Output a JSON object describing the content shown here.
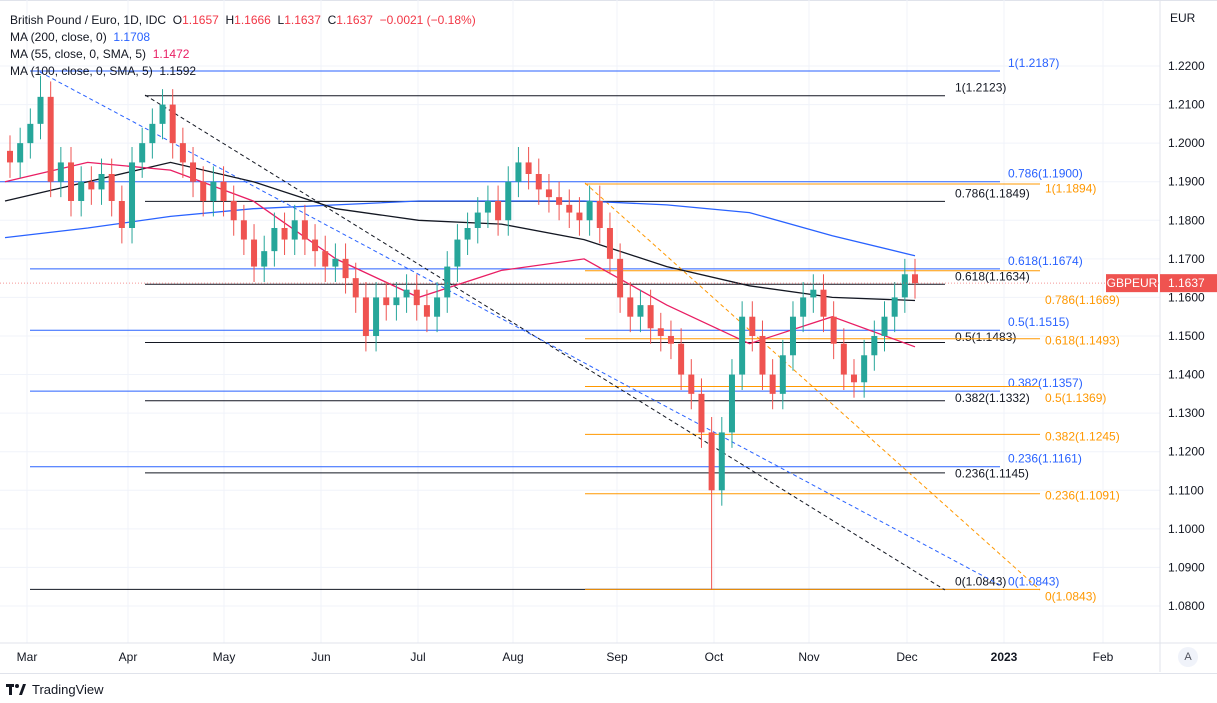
{
  "header": {
    "symbol": "British Pound / Euro, 1D, IDC",
    "open_label": "O",
    "open": "1.1657",
    "high_label": "H",
    "high": "1.1666",
    "low_label": "L",
    "low": "1.1637",
    "close_label": "C",
    "close": "1.1637",
    "change": "−0.0021 (−0.18%)"
  },
  "indicators": [
    {
      "label": "MA (200, close, 0)",
      "value": "1.1708",
      "color": "#2962ff"
    },
    {
      "label": "MA (55, close, 0, SMA, 5)",
      "value": "1.1472",
      "color": "#e91e63"
    },
    {
      "label": "MA (100, close, 0, SMA, 5)",
      "value": "1.1592",
      "color": "#131722"
    }
  ],
  "price_axis": {
    "currency": "EUR",
    "ticks": [
      "1.2200",
      "1.2100",
      "1.2000",
      "1.1900",
      "1.1800",
      "1.1700",
      "1.1600",
      "1.1500",
      "1.1400",
      "1.1300",
      "1.1200",
      "1.1100",
      "1.1000",
      "1.0900",
      "1.0800"
    ],
    "last_symbol": "GBPEUR",
    "last_price": "1.1637"
  },
  "time_axis": {
    "ticks": [
      "Mar",
      "Apr",
      "May",
      "Jun",
      "Jul",
      "Aug",
      "Sep",
      "Oct",
      "Nov",
      "Dec",
      "2023",
      "Feb"
    ],
    "auto_button": "A"
  },
  "branding": "TradingView",
  "chart_data": {
    "type": "candlestick",
    "title": "British Pound / Euro, 1D",
    "ylim": [
      1.075,
      1.226
    ],
    "candles_close": [
      1.195,
      1.2,
      1.205,
      1.212,
      1.19,
      1.195,
      1.185,
      1.19,
      1.188,
      1.192,
      1.185,
      1.178,
      1.195,
      1.2,
      1.205,
      1.21,
      1.2,
      1.195,
      1.19,
      1.185,
      1.19,
      1.185,
      1.18,
      1.175,
      1.168,
      1.172,
      1.178,
      1.175,
      1.18,
      1.175,
      1.172,
      1.168,
      1.17,
      1.165,
      1.16,
      1.15,
      1.16,
      1.158,
      1.16,
      1.162,
      1.158,
      1.155,
      1.16,
      1.168,
      1.175,
      1.178,
      1.182,
      1.185,
      1.18,
      1.19,
      1.195,
      1.192,
      1.188,
      1.186,
      1.184,
      1.182,
      1.18,
      1.185,
      1.178,
      1.17,
      1.16,
      1.155,
      1.158,
      1.152,
      1.15,
      1.148,
      1.14,
      1.135,
      1.125,
      1.11,
      1.125,
      1.14,
      1.155,
      1.15,
      1.14,
      1.135,
      1.145,
      1.155,
      1.16,
      1.162,
      1.155,
      1.148,
      1.14,
      1.138,
      1.145,
      1.15,
      1.155,
      1.16,
      1.166,
      1.1637
    ],
    "spike_high": {
      "index": 3,
      "value": 1.2175
    },
    "spike_low": {
      "index": 69,
      "value": 1.0843
    },
    "ma200": [
      1.1755,
      1.178,
      1.181,
      1.183,
      1.184,
      1.185,
      1.185,
      1.185,
      1.184,
      1.182,
      1.176,
      1.1708
    ],
    "ma100": [
      1.185,
      1.19,
      1.195,
      1.19,
      1.183,
      1.18,
      1.179,
      1.175,
      1.168,
      1.163,
      1.16,
      1.1592
    ],
    "ma55": [
      1.19,
      1.195,
      1.193,
      1.185,
      1.17,
      1.16,
      1.167,
      1.17,
      1.158,
      1.148,
      1.155,
      1.1472
    ],
    "fib_blue": [
      {
        "label": "1(1.2187)",
        "p": 1.2187
      },
      {
        "label": "0.786(1.1900)",
        "p": 1.19
      },
      {
        "label": "0.618(1.1674)",
        "p": 1.1674
      },
      {
        "label": "0.5(1.1515)",
        "p": 1.1515
      },
      {
        "label": "0.382(1.1357)",
        "p": 1.1357
      },
      {
        "label": "0.236(1.1161)",
        "p": 1.1161
      },
      {
        "label": "0(1.0843)",
        "p": 1.0843
      }
    ],
    "fib_black": [
      {
        "label": "1(1.2123)",
        "p": 1.2123
      },
      {
        "label": "0.786(1.1849)",
        "p": 1.1849
      },
      {
        "label": "0.618(1.1634)",
        "p": 1.1634
      },
      {
        "label": "0.5(1.1483)",
        "p": 1.1483
      },
      {
        "label": "0.382(1.1332)",
        "p": 1.1332
      },
      {
        "label": "0.236(1.1145)",
        "p": 1.1145
      },
      {
        "label": "0(1.0843)",
        "p": 1.0843
      }
    ],
    "fib_orange": [
      {
        "label": "1(1.1894)",
        "p": 1.1894
      },
      {
        "label": "0.786(1.1669)",
        "p": 1.1669
      },
      {
        "label": "0.618(1.1493)",
        "p": 1.1493
      },
      {
        "label": "0.5(1.1369)",
        "p": 1.1369
      },
      {
        "label": "0.382(1.1245)",
        "p": 1.1245
      },
      {
        "label": "0.236(1.1091)",
        "p": 1.1091
      },
      {
        "label": "0(1.0843)",
        "p": 1.0843
      }
    ],
    "colors": {
      "up": "#26a69a",
      "down": "#ef5350",
      "blue": "#2962ff",
      "orange": "#ff9800",
      "black": "#131722",
      "pink": "#e91e63"
    }
  }
}
